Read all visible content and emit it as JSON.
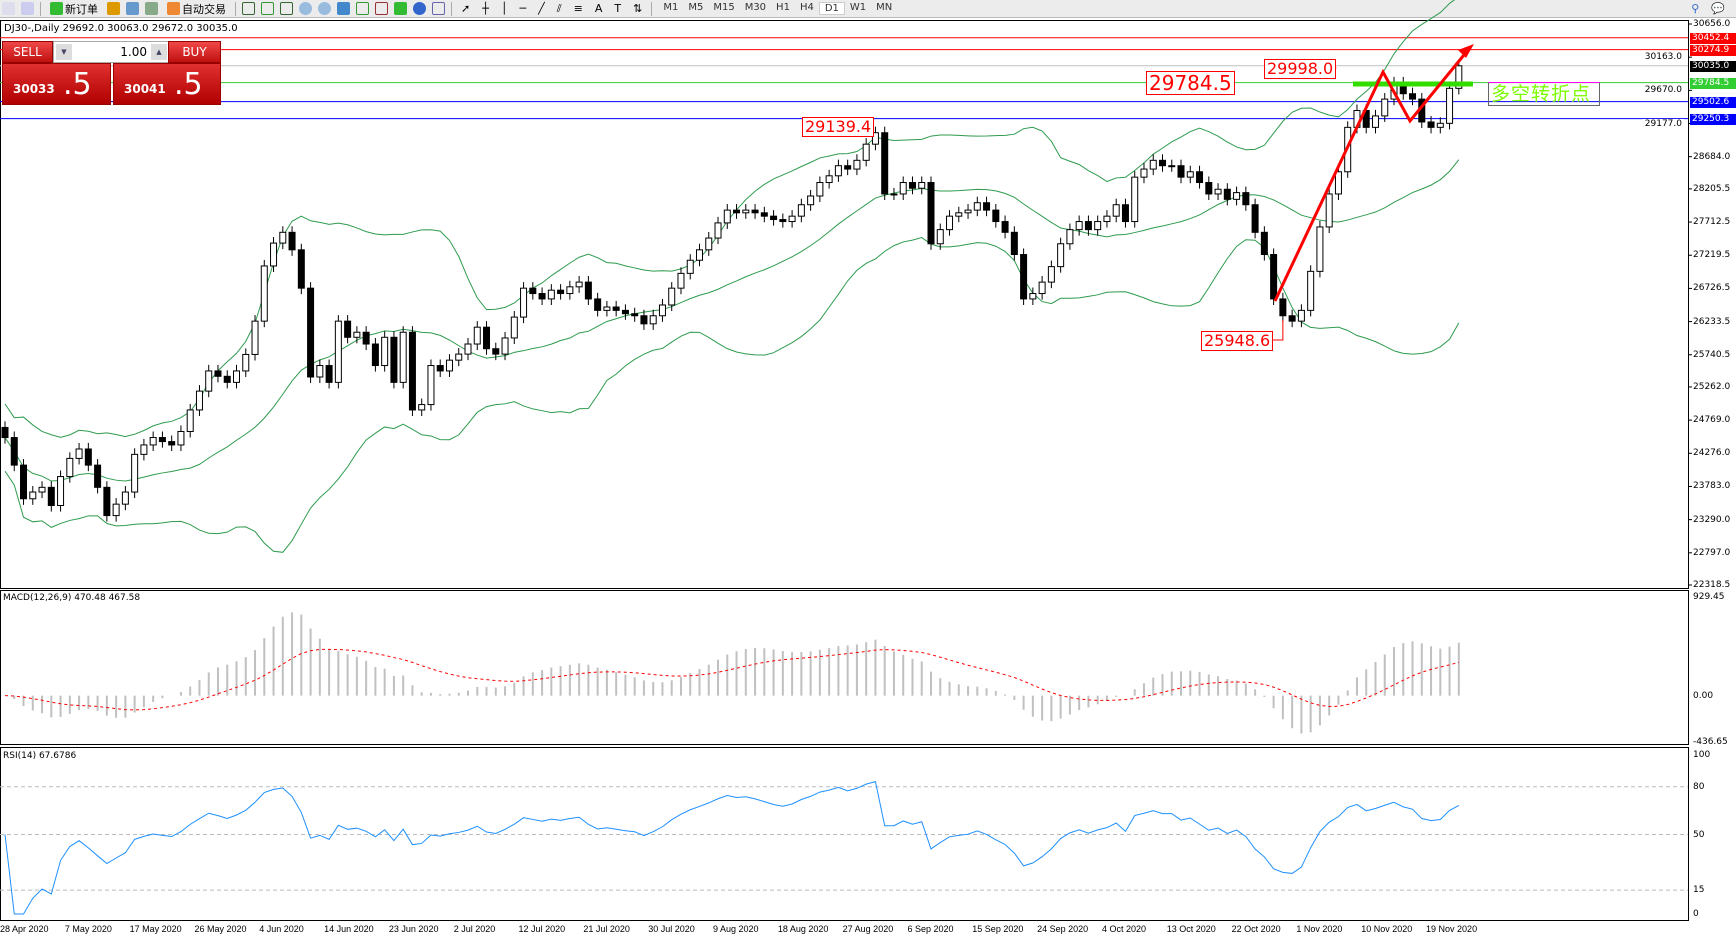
{
  "toolbar": {
    "new_order": "新订单",
    "auto_trading": "自动交易",
    "timeframes": [
      "M1",
      "M5",
      "M15",
      "M30",
      "H1",
      "H4",
      "D1",
      "W1",
      "MN"
    ],
    "active_timeframe": "D1"
  },
  "chart_title": "DJ30-,Daily  29692.0 30063.0 29672.0 30035.0",
  "trade_panel": {
    "sell_label": "SELL",
    "buy_label": "BUY",
    "lots": "1.00",
    "sell_price_small": "30033",
    "sell_price_big": ".5",
    "buy_price_small": "30041",
    "buy_price_big": ".5"
  },
  "annotations": {
    "high_label": "29998.0",
    "level_label": "29784.5",
    "prior_high_label": "29139.4",
    "low_label": "25948.6",
    "turning_point_text": "多空转折点"
  },
  "price_lines": [
    {
      "price": 30452.4,
      "label": "30452.4",
      "color": "#ff0000"
    },
    {
      "price": 30274.9,
      "label": "30274.9",
      "color": "#ff0000"
    },
    {
      "price": 30035.0,
      "label": "30035.0",
      "color": "#000000",
      "line": "#c0c0c0"
    },
    {
      "price": 29784.5,
      "label": "29784.5",
      "color": "#32cd32"
    },
    {
      "price": 29502.6,
      "label": "29502.6",
      "color": "#0000ff"
    },
    {
      "price": 29250.3,
      "label": "29250.3",
      "color": "#0000ff"
    }
  ],
  "colors": {
    "bands": "#2e9b4e",
    "macd_signal": "#ff0000",
    "macd_hist": "#c0c0c0",
    "rsi": "#1e90ff",
    "arrow": "#ff0000",
    "pivot_bar": "#33dd00"
  },
  "chart_data": {
    "type": "candlestick",
    "symbol": "DJ30-",
    "timeframe": "Daily",
    "ylim": [
      22318.5,
      30656.0
    ],
    "y_ticks": [
      "30656.0",
      "30163.0",
      "29670.0",
      "29177.0",
      "28684.0",
      "28205.5",
      "27712.5",
      "27219.5",
      "26726.5",
      "26233.5",
      "25740.5",
      "25262.0",
      "24769.0",
      "24276.0",
      "23783.0",
      "23290.0",
      "22797.0",
      "22318.5"
    ],
    "x_ticks": [
      "28 Apr 2020",
      "7 May 2020",
      "17 May 2020",
      "26 May 2020",
      "4 Jun 2020",
      "14 Jun 2020",
      "23 Jun 2020",
      "2 Jul 2020",
      "12 Jul 2020",
      "21 Jul 2020",
      "30 Jul 2020",
      "9 Aug 2020",
      "18 Aug 2020",
      "27 Aug 2020",
      "6 Sep 2020",
      "15 Sep 2020",
      "24 Sep 2020",
      "4 Oct 2020",
      "13 Oct 2020",
      "22 Oct 2020",
      "1 Nov 2020",
      "10 Nov 2020",
      "19 Nov 2020"
    ],
    "closes": [
      24510,
      24100,
      23600,
      23700,
      23770,
      23500,
      23930,
      24200,
      24340,
      24100,
      23770,
      23350,
      23520,
      23700,
      24260,
      24400,
      24510,
      24450,
      24400,
      24600,
      24920,
      25200,
      25500,
      25420,
      25330,
      25500,
      25745,
      26240,
      27060,
      27400,
      27560,
      27300,
      26730,
      25410,
      25580,
      25330,
      26240,
      26000,
      26075,
      25900,
      25580,
      26000,
      25330,
      26075,
      24920,
      25000,
      25580,
      25500,
      25660,
      25750,
      25900,
      26150,
      25830,
      25750,
      25990,
      26300,
      26730,
      26650,
      26570,
      26700,
      26650,
      26750,
      26820,
      26570,
      26400,
      26450,
      26400,
      26350,
      26320,
      26200,
      26320,
      26480,
      26730,
      26950,
      27145,
      27300,
      27475,
      27700,
      27890,
      27850,
      27890,
      27850,
      27800,
      27750,
      27720,
      27800,
      27970,
      28100,
      28300,
      28400,
      28550,
      28500,
      28630,
      28870,
      29040,
      28130,
      28130,
      28300,
      28215,
      28300,
      27390,
      27600,
      27800,
      27850,
      27890,
      28000,
      27890,
      27720,
      27560,
      27230,
      26570,
      26650,
      26820,
      27050,
      27390,
      27600,
      27720,
      27600,
      27720,
      27800,
      27970,
      27720,
      28380,
      28500,
      28630,
      28550,
      28550,
      28380,
      28460,
      28300,
      28130,
      28200,
      28050,
      28150,
      27970,
      27560,
      27230,
      26570,
      26320,
      26240,
      26400,
      26980,
      27640,
      28130,
      28460,
      29120,
      29370,
      29120,
      29290,
      29540,
      29780,
      29620,
      29540,
      29200,
      29120,
      29180,
      29700,
      30035
    ],
    "bollinger": {
      "period": 20,
      "deviation": 2
    },
    "macd": {
      "label": "MACD(12,26,9) 470.48 467.58",
      "ticks": [
        "929.45",
        "0.00",
        "-436.65"
      ],
      "ylim": [
        -436.65,
        929.45
      ]
    },
    "rsi": {
      "label": "RSI(14) 67.6786",
      "ticks": [
        "100",
        "80",
        "50",
        "15",
        "0"
      ],
      "levels": [
        80,
        50,
        15
      ]
    }
  }
}
